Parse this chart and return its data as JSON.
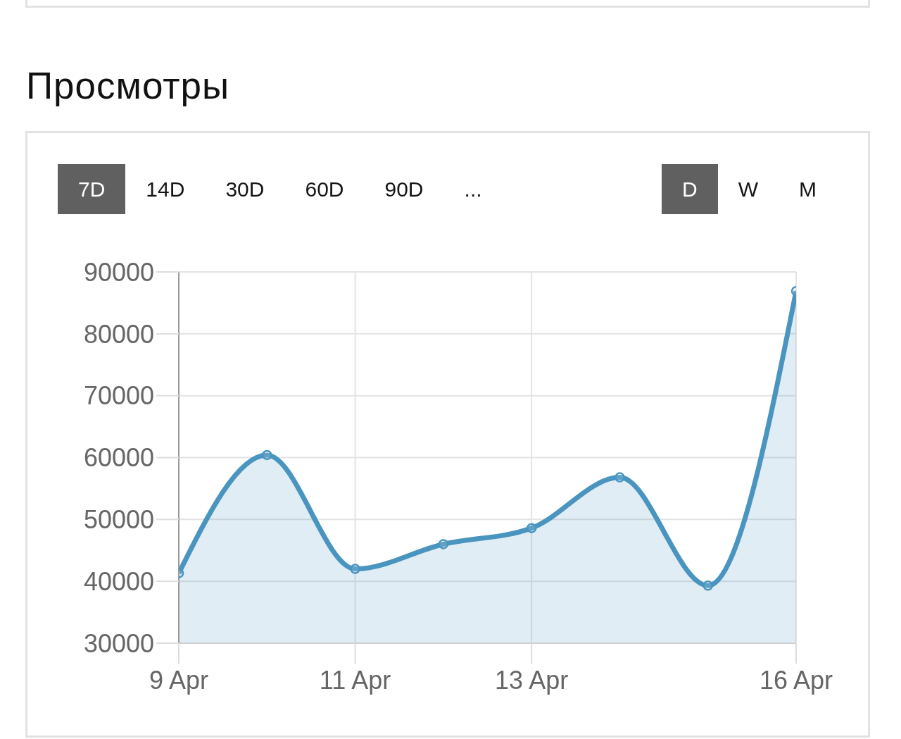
{
  "chart_data": {
    "type": "area",
    "title": "Просмотры",
    "annotations": [
      "7D",
      "14D",
      "30D",
      "60D",
      "90D",
      "...",
      "D",
      "W",
      "M"
    ],
    "x": [
      "--04-09",
      "--04-10",
      "--04-11",
      "--04-12",
      "--04-13",
      "--04-14",
      "--04-15",
      "--04-16"
    ],
    "series": [
      {
        "color": "#4a95c0",
        "values": [
          41300,
          60400,
          42000,
          46000,
          48600,
          56800,
          39300,
          86900
        ]
      }
    ],
    "xlim": [
      "--04-09",
      "--04-16"
    ],
    "xticks": [
      {
        "value": "--04-09",
        "label": "9 Apr"
      },
      {
        "value": "--04-11",
        "label": "11 Apr"
      },
      {
        "value": "--04-13",
        "label": "13 Apr"
      },
      {
        "value": "--04-16",
        "label": "16 Apr"
      }
    ],
    "ylim": [
      30000,
      90000
    ],
    "yticks": [
      30000,
      40000,
      50000,
      60000,
      70000,
      80000,
      90000
    ],
    "grid": true,
    "marker": "circle",
    "line_style": "solid"
  }
}
